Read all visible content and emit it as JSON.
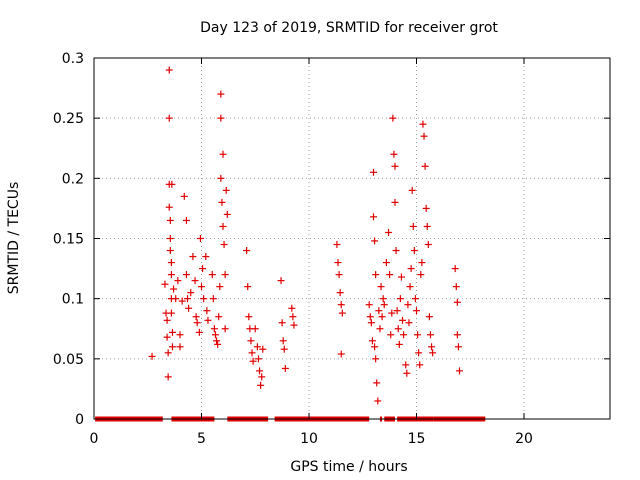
{
  "chart_data": {
    "type": "scatter",
    "title": "Day 123 of 2019, SRMTID for receiver grot",
    "xlabel": "GPS time / hours",
    "ylabel": "SRMTID / TECUs",
    "xlim": [
      0,
      24
    ],
    "ylim": [
      0,
      0.3
    ],
    "x_ticks": [
      0,
      5,
      10,
      15,
      20
    ],
    "x_tick_labels": [
      "0",
      "5",
      "10",
      "15",
      "20"
    ],
    "y_ticks": [
      0,
      0.05,
      0.1,
      0.15,
      0.2,
      0.25,
      0.3
    ],
    "y_tick_labels": [
      "0",
      "0.05",
      "0.1",
      "0.15",
      "0.2",
      "0.25",
      "0.3"
    ],
    "grid": true,
    "marker": "plus",
    "series_color": "#e00000",
    "baseline_segments_at_zero": [
      [
        0.05,
        3.2
      ],
      [
        3.6,
        5.6
      ],
      [
        6.2,
        8.1
      ],
      [
        8.4,
        12.8
      ],
      [
        13.3,
        13.4
      ],
      [
        13.5,
        14.0
      ],
      [
        14.1,
        15.8
      ],
      [
        15.8,
        18.2
      ]
    ],
    "points": [
      [
        2.7,
        0.052
      ],
      [
        3.3,
        0.112
      ],
      [
        3.35,
        0.088
      ],
      [
        3.4,
        0.082
      ],
      [
        3.4,
        0.068
      ],
      [
        3.45,
        0.055
      ],
      [
        3.45,
        0.035
      ],
      [
        3.5,
        0.29
      ],
      [
        3.5,
        0.25
      ],
      [
        3.5,
        0.195
      ],
      [
        3.5,
        0.176
      ],
      [
        3.55,
        0.165
      ],
      [
        3.55,
        0.15
      ],
      [
        3.55,
        0.14
      ],
      [
        3.6,
        0.13
      ],
      [
        3.6,
        0.12
      ],
      [
        3.6,
        0.1
      ],
      [
        3.6,
        0.088
      ],
      [
        3.62,
        0.195
      ],
      [
        3.65,
        0.072
      ],
      [
        3.65,
        0.06
      ],
      [
        3.7,
        0.108
      ],
      [
        3.8,
        0.1
      ],
      [
        3.9,
        0.115
      ],
      [
        4.0,
        0.07
      ],
      [
        4.0,
        0.06
      ],
      [
        4.1,
        0.098
      ],
      [
        4.2,
        0.185
      ],
      [
        4.3,
        0.165
      ],
      [
        4.3,
        0.12
      ],
      [
        4.35,
        0.1
      ],
      [
        4.4,
        0.092
      ],
      [
        4.5,
        0.105
      ],
      [
        4.6,
        0.135
      ],
      [
        4.7,
        0.115
      ],
      [
        4.75,
        0.085
      ],
      [
        4.8,
        0.08
      ],
      [
        4.9,
        0.072
      ],
      [
        4.95,
        0.15
      ],
      [
        5.0,
        0.11
      ],
      [
        5.05,
        0.125
      ],
      [
        5.1,
        0.1
      ],
      [
        5.2,
        0.135
      ],
      [
        5.25,
        0.09
      ],
      [
        5.3,
        0.082
      ],
      [
        5.5,
        0.12
      ],
      [
        5.55,
        0.1
      ],
      [
        5.6,
        0.075
      ],
      [
        5.65,
        0.07
      ],
      [
        5.7,
        0.065
      ],
      [
        5.75,
        0.062
      ],
      [
        5.8,
        0.085
      ],
      [
        5.85,
        0.11
      ],
      [
        5.9,
        0.27
      ],
      [
        5.9,
        0.25
      ],
      [
        5.9,
        0.2
      ],
      [
        5.95,
        0.18
      ],
      [
        6.0,
        0.22
      ],
      [
        6.0,
        0.16
      ],
      [
        6.05,
        0.145
      ],
      [
        6.1,
        0.12
      ],
      [
        6.1,
        0.075
      ],
      [
        6.15,
        0.19
      ],
      [
        6.2,
        0.17
      ],
      [
        7.1,
        0.14
      ],
      [
        7.15,
        0.11
      ],
      [
        7.2,
        0.085
      ],
      [
        7.25,
        0.075
      ],
      [
        7.3,
        0.065
      ],
      [
        7.35,
        0.055
      ],
      [
        7.4,
        0.048
      ],
      [
        7.5,
        0.075
      ],
      [
        7.6,
        0.06
      ],
      [
        7.65,
        0.05
      ],
      [
        7.7,
        0.04
      ],
      [
        7.75,
        0.028
      ],
      [
        7.8,
        0.035
      ],
      [
        7.85,
        0.058
      ],
      [
        8.7,
        0.115
      ],
      [
        8.75,
        0.08
      ],
      [
        8.8,
        0.065
      ],
      [
        8.85,
        0.058
      ],
      [
        8.9,
        0.042
      ],
      [
        9.2,
        0.092
      ],
      [
        9.25,
        0.085
      ],
      [
        9.3,
        0.078
      ],
      [
        11.3,
        0.145
      ],
      [
        11.35,
        0.13
      ],
      [
        11.4,
        0.12
      ],
      [
        11.45,
        0.105
      ],
      [
        11.5,
        0.095
      ],
      [
        11.55,
        0.088
      ],
      [
        11.5,
        0.054
      ],
      [
        12.8,
        0.095
      ],
      [
        12.85,
        0.085
      ],
      [
        12.9,
        0.08
      ],
      [
        12.95,
        0.065
      ],
      [
        13.0,
        0.205
      ],
      [
        13.0,
        0.168
      ],
      [
        13.05,
        0.148
      ],
      [
        13.05,
        0.06
      ],
      [
        13.1,
        0.12
      ],
      [
        13.1,
        0.05
      ],
      [
        13.15,
        0.03
      ],
      [
        13.2,
        0.015
      ],
      [
        13.25,
        0.09
      ],
      [
        13.3,
        0.075
      ],
      [
        13.35,
        0.11
      ],
      [
        13.4,
        0.085
      ],
      [
        13.45,
        0.1
      ],
      [
        13.5,
        0.095
      ],
      [
        13.6,
        0.13
      ],
      [
        13.7,
        0.155
      ],
      [
        13.75,
        0.12
      ],
      [
        13.8,
        0.07
      ],
      [
        13.85,
        0.088
      ],
      [
        13.9,
        0.25
      ],
      [
        13.95,
        0.22
      ],
      [
        14.0,
        0.21
      ],
      [
        14.0,
        0.18
      ],
      [
        14.05,
        0.14
      ],
      [
        14.1,
        0.09
      ],
      [
        14.15,
        0.075
      ],
      [
        14.2,
        0.062
      ],
      [
        14.25,
        0.1
      ],
      [
        14.3,
        0.118
      ],
      [
        14.35,
        0.082
      ],
      [
        14.4,
        0.07
      ],
      [
        14.5,
        0.045
      ],
      [
        14.55,
        0.038
      ],
      [
        14.6,
        0.095
      ],
      [
        14.65,
        0.08
      ],
      [
        14.7,
        0.11
      ],
      [
        14.75,
        0.125
      ],
      [
        14.8,
        0.19
      ],
      [
        14.85,
        0.16
      ],
      [
        14.9,
        0.14
      ],
      [
        14.95,
        0.1
      ],
      [
        15.0,
        0.09
      ],
      [
        15.05,
        0.07
      ],
      [
        15.1,
        0.055
      ],
      [
        15.15,
        0.045
      ],
      [
        15.2,
        0.12
      ],
      [
        15.25,
        0.13
      ],
      [
        15.3,
        0.245
      ],
      [
        15.35,
        0.235
      ],
      [
        15.4,
        0.21
      ],
      [
        15.45,
        0.175
      ],
      [
        15.5,
        0.16
      ],
      [
        15.55,
        0.145
      ],
      [
        15.6,
        0.085
      ],
      [
        15.65,
        0.07
      ],
      [
        15.7,
        0.06
      ],
      [
        15.75,
        0.055
      ],
      [
        16.8,
        0.125
      ],
      [
        16.85,
        0.11
      ],
      [
        16.9,
        0.097
      ],
      [
        16.9,
        0.07
      ],
      [
        16.95,
        0.06
      ],
      [
        17.0,
        0.04
      ]
    ]
  }
}
